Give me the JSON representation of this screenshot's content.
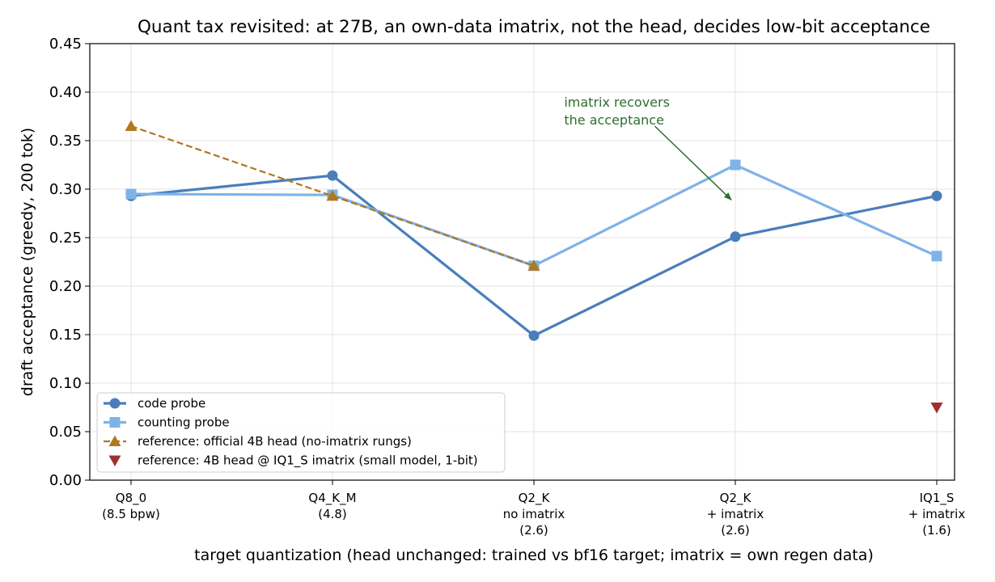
{
  "chart_data": {
    "type": "line",
    "title": "Quant tax revisited: at 27B, an own-data imatrix, not the head, decides low-bit acceptance",
    "xlabel": "target quantization (head unchanged: trained vs bf16 target; imatrix = own regen data)",
    "ylabel": "draft acceptance (greedy, 200 tok)",
    "categories": [
      [
        "Q8_0",
        "(8.5 bpw)"
      ],
      [
        "Q4_K_M",
        "(4.8)"
      ],
      [
        "Q2_K",
        "no imatrix",
        "(2.6)"
      ],
      [
        "Q2_K",
        "+ imatrix",
        "(2.6)"
      ],
      [
        "IQ1_S",
        "+ imatrix",
        "(1.6)"
      ]
    ],
    "ylim": [
      0,
      0.45
    ],
    "yticks": [
      "0.00",
      "0.05",
      "0.10",
      "0.15",
      "0.20",
      "0.25",
      "0.30",
      "0.35",
      "0.40",
      "0.45"
    ],
    "grid": true,
    "legend_position": "lower-left",
    "series": [
      {
        "name": "code probe",
        "values": [
          0.293,
          0.314,
          0.149,
          0.251,
          0.293
        ],
        "color": "#4a7ebb",
        "marker": "circle",
        "linestyle": "solid"
      },
      {
        "name": "counting probe",
        "values": [
          0.295,
          0.294,
          0.221,
          0.325,
          0.231
        ],
        "color": "#7eb3e8",
        "marker": "square",
        "linestyle": "solid"
      },
      {
        "name": "reference: official 4B head (no-imatrix rungs)",
        "values": [
          0.365,
          0.293,
          0.221,
          null,
          null
        ],
        "color": "#b07820",
        "marker": "triangle-up",
        "linestyle": "dashed"
      },
      {
        "name": "reference: 4B head @ IQ1_S imatrix (small model, 1-bit)",
        "values": [
          null,
          null,
          null,
          null,
          0.075
        ],
        "color": "#a03030",
        "marker": "triangle-down",
        "linestyle": "none"
      }
    ],
    "annotation": {
      "text": [
        "imatrix recovers",
        "the acceptance"
      ],
      "color": "#2d6e2d",
      "text_at": {
        "category_index": 2.15,
        "y": 0.385
      },
      "arrow_from": {
        "category_index": 2.6,
        "y": 0.365
      },
      "arrow_to": {
        "category_index": 2.98,
        "y": 0.289
      }
    }
  }
}
